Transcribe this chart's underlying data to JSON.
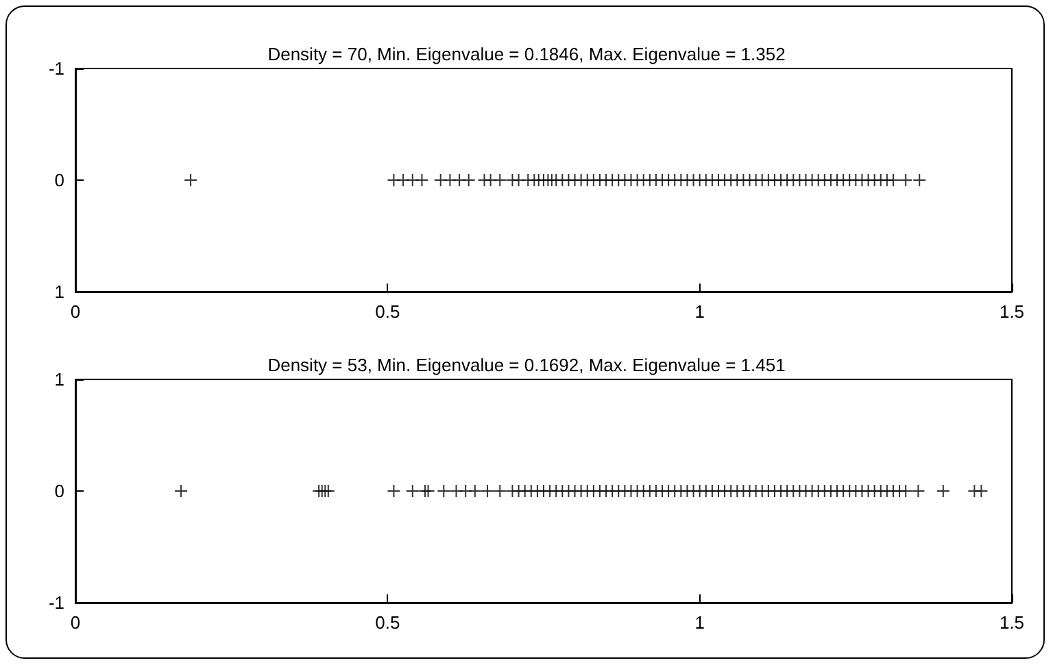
{
  "chart_data": [
    {
      "type": "scatter",
      "title": "Density = 70, Min. Eigenvalue = 0.1846, Max. Eigenvalue = 1.352",
      "marker": "cross",
      "grid": false,
      "xlim": [
        0,
        1.5
      ],
      "xticks": [
        0,
        0.5,
        1,
        1.5
      ],
      "ylim": [
        1,
        -1
      ],
      "yticks": [
        -1,
        0,
        1
      ],
      "x": [
        0.1846,
        0.51,
        0.525,
        0.54,
        0.555,
        0.585,
        0.6,
        0.615,
        0.63,
        0.655,
        0.665,
        0.68,
        0.7,
        0.71,
        0.725,
        0.735,
        0.742,
        0.75,
        0.757,
        0.763,
        0.77,
        0.78,
        0.79,
        0.8,
        0.81,
        0.82,
        0.83,
        0.84,
        0.85,
        0.86,
        0.87,
        0.88,
        0.89,
        0.9,
        0.91,
        0.92,
        0.93,
        0.94,
        0.95,
        0.96,
        0.97,
        0.98,
        0.99,
        1,
        1.01,
        1.02,
        1.03,
        1.04,
        1.05,
        1.06,
        1.07,
        1.08,
        1.09,
        1.1,
        1.11,
        1.12,
        1.13,
        1.14,
        1.15,
        1.16,
        1.17,
        1.18,
        1.19,
        1.2,
        1.21,
        1.22,
        1.23,
        1.24,
        1.25,
        1.26,
        1.27,
        1.28,
        1.29,
        1.3,
        1.31,
        1.33,
        1.352
      ],
      "values": [
        0,
        0,
        0,
        0,
        0,
        0,
        0,
        0,
        0,
        0,
        0,
        0,
        0,
        0,
        0,
        0,
        0,
        0,
        0,
        0,
        0,
        0,
        0,
        0,
        0,
        0,
        0,
        0,
        0,
        0,
        0,
        0,
        0,
        0,
        0,
        0,
        0,
        0,
        0,
        0,
        0,
        0,
        0,
        0,
        0,
        0,
        0,
        0,
        0,
        0,
        0,
        0,
        0,
        0,
        0,
        0,
        0,
        0,
        0,
        0,
        0,
        0,
        0,
        0,
        0,
        0,
        0,
        0,
        0,
        0,
        0,
        0,
        0,
        0,
        0,
        0,
        0
      ],
      "color": "#000000"
    },
    {
      "type": "scatter",
      "title": "Density = 53, Min. Eigenvalue = 0.1692, Max. Eigenvalue = 1.451",
      "marker": "cross",
      "grid": false,
      "xlim": [
        0,
        1.5
      ],
      "xticks": [
        0,
        0.5,
        1,
        1.5
      ],
      "ylim": [
        -1,
        1
      ],
      "yticks": [
        -1,
        0,
        1
      ],
      "x": [
        0.1692,
        0.39,
        0.395,
        0.4,
        0.405,
        0.51,
        0.54,
        0.56,
        0.565,
        0.59,
        0.61,
        0.625,
        0.64,
        0.66,
        0.68,
        0.7,
        0.71,
        0.72,
        0.73,
        0.74,
        0.75,
        0.76,
        0.77,
        0.78,
        0.79,
        0.8,
        0.81,
        0.82,
        0.83,
        0.84,
        0.85,
        0.86,
        0.87,
        0.88,
        0.89,
        0.9,
        0.91,
        0.92,
        0.93,
        0.94,
        0.95,
        0.96,
        0.97,
        0.98,
        0.99,
        1,
        1.01,
        1.02,
        1.03,
        1.04,
        1.05,
        1.06,
        1.07,
        1.08,
        1.09,
        1.1,
        1.11,
        1.12,
        1.13,
        1.14,
        1.15,
        1.16,
        1.17,
        1.18,
        1.19,
        1.2,
        1.21,
        1.22,
        1.23,
        1.24,
        1.25,
        1.26,
        1.27,
        1.28,
        1.29,
        1.3,
        1.31,
        1.32,
        1.33,
        1.35,
        1.39,
        1.44,
        1.451
      ],
      "values": [
        0,
        0,
        0,
        0,
        0,
        0,
        0,
        0,
        0,
        0,
        0,
        0,
        0,
        0,
        0,
        0,
        0,
        0,
        0,
        0,
        0,
        0,
        0,
        0,
        0,
        0,
        0,
        0,
        0,
        0,
        0,
        0,
        0,
        0,
        0,
        0,
        0,
        0,
        0,
        0,
        0,
        0,
        0,
        0,
        0,
        0,
        0,
        0,
        0,
        0,
        0,
        0,
        0,
        0,
        0,
        0,
        0,
        0,
        0,
        0,
        0,
        0,
        0,
        0,
        0,
        0,
        0,
        0,
        0,
        0,
        0,
        0,
        0,
        0,
        0,
        0,
        0,
        0,
        0,
        0,
        0,
        0,
        0
      ],
      "color": "#000000"
    }
  ]
}
